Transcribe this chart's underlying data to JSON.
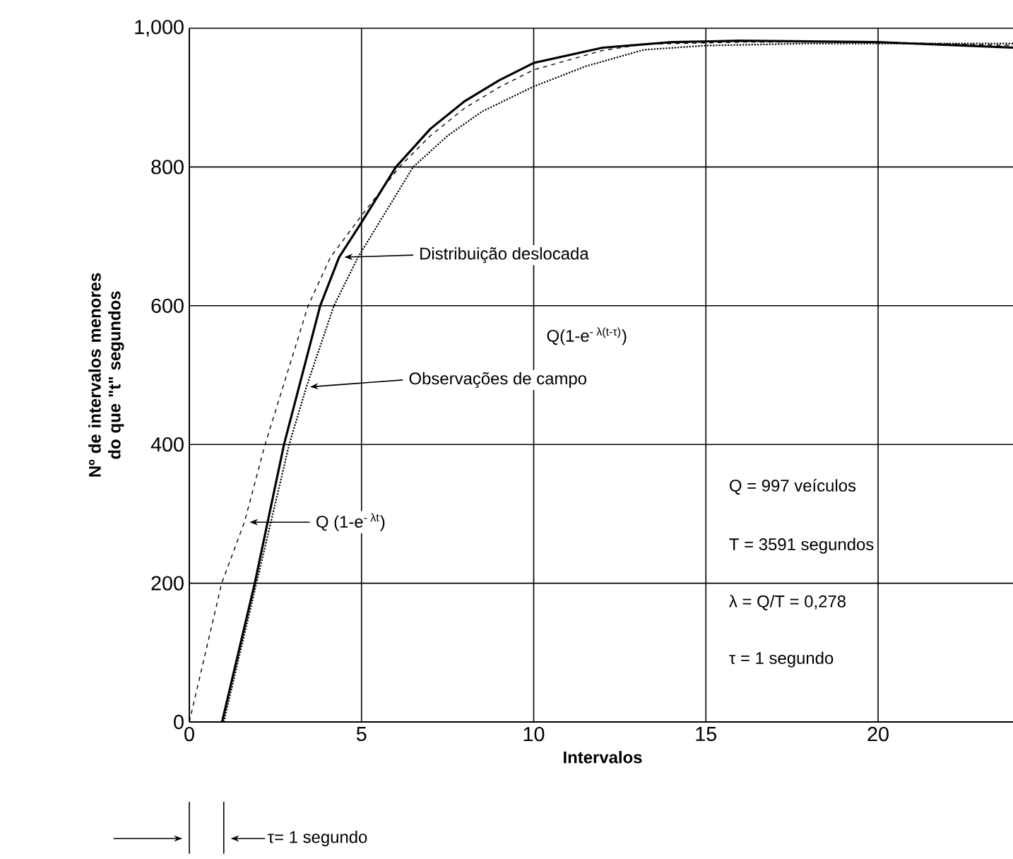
{
  "chart_data": {
    "type": "line",
    "xlabel": "Intervalos",
    "ylabel": "Nº de intervalos menores do que \"t\" segundos",
    "xlim": [
      0,
      24
    ],
    "ylim": [
      0,
      1000
    ],
    "xticks": [
      0,
      5,
      10,
      15,
      20
    ],
    "yticks": [
      0,
      200,
      400,
      600,
      800,
      {
        "value": 1000,
        "label": "1,000"
      }
    ],
    "grid": true,
    "series": [
      {
        "color": "#000000",
        "line_style": "solid",
        "x": [
          0.95,
          1.9,
          2.75,
          3.8,
          4.35,
          5,
          6,
          7,
          8,
          9,
          10,
          12,
          14,
          16,
          20,
          24
        ],
        "values": [
          0,
          200,
          400,
          600,
          670,
          720,
          800,
          855,
          895,
          925,
          950,
          972,
          980,
          982,
          980,
          972
        ]
      },
      {
        "color": "#000000",
        "line_style": "dashed",
        "x": [
          0,
          0.94,
          1.6,
          2.2,
          3.45,
          4.1,
          5,
          6.1,
          7,
          8,
          9,
          10,
          12,
          13.2,
          16,
          20,
          24
        ],
        "values": [
          0,
          200,
          288,
          400,
          600,
          670,
          730,
          800,
          845,
          885,
          915,
          940,
          968,
          977,
          980,
          980,
          975
        ]
      },
      {
        "color": "#000000",
        "line_style": "dotted",
        "x": [
          1.0,
          1.95,
          2.9,
          3.4,
          4.2,
          4.9,
          6.5,
          7.5,
          8.5,
          10,
          11.5,
          13.2,
          15,
          18,
          24
        ],
        "values": [
          0,
          200,
          400,
          483,
          600,
          670,
          800,
          845,
          880,
          916,
          945,
          969,
          975,
          978,
          978
        ]
      }
    ],
    "annotations": [
      "Distribuição deslocada",
      "Q(1-e$^{- λ(t-τ)}$)",
      "Observações de campo",
      "Q (1-e$^{- λt}$)",
      "Q = 997 veículos",
      "T = 3591 segundos",
      "λ = Q/T = 0,278",
      "τ = 1 segundo",
      "τ= 1 segundo"
    ]
  }
}
